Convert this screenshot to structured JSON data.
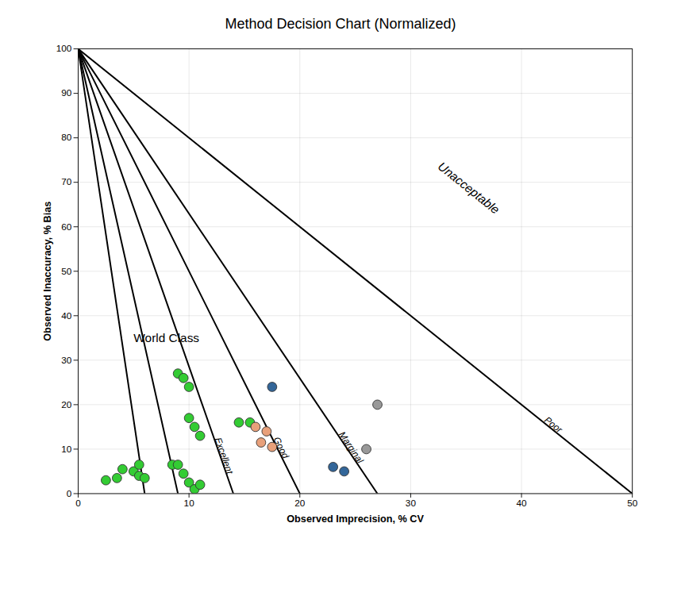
{
  "chart_data": {
    "type": "scatter",
    "title": "Method Decision Chart (Normalized)",
    "xlabel": "Observed Imprecision, % CV",
    "ylabel": "Observed Inaccuracy, % Bias",
    "xlim": [
      0,
      50
    ],
    "ylim": [
      0,
      100
    ],
    "xticks": [
      0,
      10,
      20,
      30,
      40,
      50
    ],
    "yticks": [
      0,
      10,
      20,
      30,
      40,
      50,
      60,
      70,
      80,
      90,
      100
    ],
    "grid": true,
    "series": [
      {
        "type": "line",
        "color": "#000000",
        "x": [
          0,
          6.0
        ],
        "values": [
          100,
          0
        ]
      },
      {
        "type": "line",
        "color": "#000000",
        "x": [
          0,
          9.0
        ],
        "values": [
          100,
          0
        ]
      },
      {
        "type": "line",
        "color": "#000000",
        "x": [
          0,
          14.0
        ],
        "values": [
          100,
          0
        ]
      },
      {
        "type": "line",
        "color": "#000000",
        "x": [
          0,
          20.0
        ],
        "values": [
          100,
          0
        ]
      },
      {
        "type": "line",
        "color": "#000000",
        "x": [
          0,
          27.0
        ],
        "values": [
          100,
          0
        ]
      },
      {
        "type": "line",
        "color": "#000000",
        "x": [
          0,
          50.0
        ],
        "values": [
          100,
          0
        ]
      },
      {
        "type": "scatter",
        "color": "#33CC33",
        "x": [
          2.5,
          3.5,
          4.0,
          5.0,
          5.5,
          6.0,
          5.5,
          8.5,
          9.0,
          9.5,
          10.0,
          10.5,
          11.0,
          9.0,
          9.5,
          10.0,
          10.0,
          10.5,
          11.0,
          14.5,
          15.5
        ],
        "values": [
          3,
          3.5,
          5.5,
          5.0,
          4.0,
          3.5,
          6.5,
          6.5,
          6.5,
          4.5,
          2.5,
          1.0,
          2.0,
          27,
          26,
          24,
          17,
          15,
          13,
          16,
          16
        ]
      },
      {
        "type": "scatter",
        "color": "#E8A07A",
        "x": [
          16.0,
          17.0,
          16.5,
          17.5
        ],
        "values": [
          15,
          14,
          11.5,
          10.5
        ]
      },
      {
        "type": "scatter",
        "color": "#336699",
        "x": [
          17.5,
          23.0,
          24.0
        ],
        "values": [
          24,
          6,
          5
        ]
      },
      {
        "type": "scatter",
        "color": "#999999",
        "x": [
          27.0,
          26.0
        ],
        "values": [
          20,
          10
        ]
      }
    ],
    "annotations": [
      {
        "text": "Excellent",
        "x": 12.32,
        "y": 12
      },
      {
        "text": "Good",
        "x": 17.6,
        "y": 12
      },
      {
        "text": "Marginal",
        "x": 23.49,
        "y": 13
      },
      {
        "text": "Poor",
        "x": 42,
        "y": 16
      },
      {
        "text": "World Class",
        "x": 5.0,
        "y": 35
      },
      {
        "text": "Unacceptable",
        "x": 35,
        "y": 68
      }
    ]
  }
}
